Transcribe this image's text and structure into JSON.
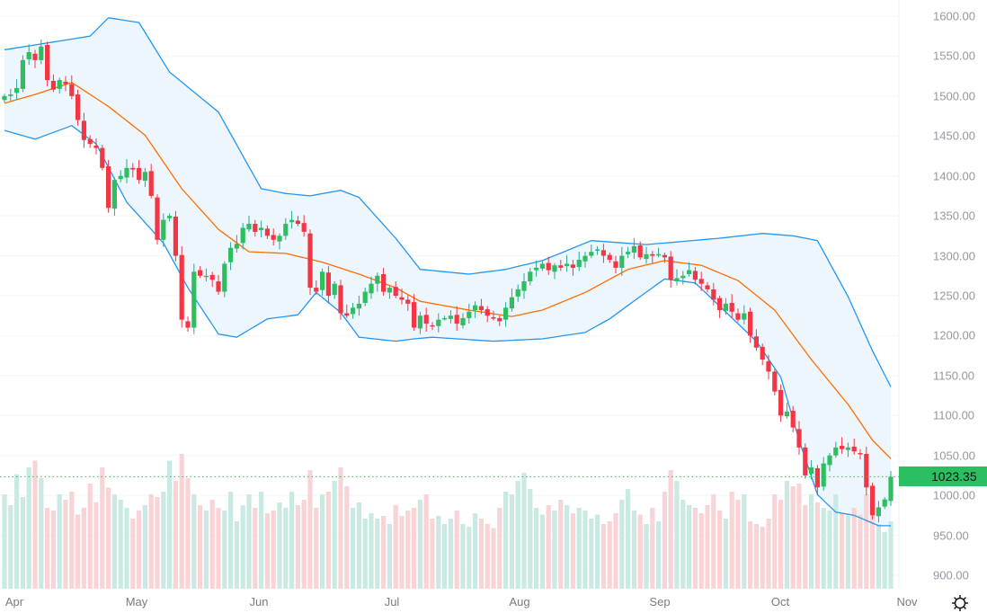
{
  "chart_data": {
    "type": "candlestick",
    "title": "",
    "y_axis": {
      "ticks": [
        "1600.00",
        "1550.00",
        "1500.00",
        "1450.00",
        "1400.00",
        "1350.00",
        "1300.00",
        "1250.00",
        "1200.00",
        "1150.00",
        "1100.00",
        "1050.00",
        "1000.00",
        "950.00",
        "900.00"
      ],
      "range": [
        900,
        1600
      ]
    },
    "x_axis": {
      "ticks": [
        "Apr",
        "May",
        "Jun",
        "Jul",
        "Aug",
        "Sep",
        "Oct",
        "Nov"
      ]
    },
    "last_price": "1023.35",
    "first_open": 1495,
    "closes": [
      1500,
      1502,
      1510,
      1545,
      1555,
      1545,
      1562,
      1520,
      1508,
      1520,
      1515,
      1500,
      1470,
      1445,
      1440,
      1435,
      1410,
      1360,
      1395,
      1400,
      1410,
      1408,
      1395,
      1405,
      1375,
      1320,
      1345,
      1350,
      1300,
      1220,
      1210,
      1280,
      1275,
      1275,
      1270,
      1255,
      1290,
      1310,
      1315,
      1335,
      1340,
      1330,
      1335,
      1325,
      1320,
      1325,
      1340,
      1345,
      1340,
      1330,
      1260,
      1255,
      1280,
      1250,
      1265,
      1228,
      1225,
      1235,
      1240,
      1255,
      1265,
      1275,
      1255,
      1260,
      1250,
      1245,
      1240,
      1210,
      1225,
      1215,
      1212,
      1220,
      1222,
      1225,
      1215,
      1222,
      1230,
      1238,
      1232,
      1225,
      1222,
      1218,
      1235,
      1248,
      1258,
      1268,
      1280,
      1285,
      1290,
      1282,
      1288,
      1285,
      1290,
      1285,
      1295,
      1300,
      1305,
      1308,
      1300,
      1295,
      1285,
      1300,
      1305,
      1312,
      1298,
      1302,
      1300,
      1302,
      1298,
      1270,
      1272,
      1275,
      1282,
      1270,
      1265,
      1258,
      1245,
      1232,
      1240,
      1230,
      1220,
      1228,
      1200,
      1185,
      1170,
      1155,
      1130,
      1100,
      1105,
      1085,
      1060,
      1025,
      1035,
      1010,
      1040,
      1050,
      1060,
      1058,
      1060,
      1055,
      1052,
      1010,
      975,
      985,
      995,
      1023.35
    ],
    "volumes": [
      70,
      62,
      85,
      68,
      90,
      95,
      82,
      60,
      58,
      70,
      66,
      72,
      55,
      60,
      78,
      64,
      90,
      75,
      70,
      66,
      60,
      52,
      58,
      62,
      70,
      68,
      72,
      95,
      80,
      100,
      82,
      70,
      62,
      58,
      66,
      60,
      58,
      72,
      50,
      62,
      70,
      60,
      72,
      56,
      58,
      64,
      60,
      72,
      62,
      66,
      88,
      60,
      70,
      72,
      80,
      90,
      76,
      60,
      64,
      52,
      56,
      52,
      54,
      48,
      62,
      54,
      58,
      60,
      66,
      70,
      52,
      54,
      48,
      52,
      58,
      48,
      46,
      56,
      52,
      48,
      45,
      60,
      72,
      70,
      80,
      86,
      74,
      60,
      55,
      62,
      58,
      66,
      62,
      56,
      60,
      58,
      52,
      55,
      48,
      50,
      56,
      66,
      74,
      58,
      55,
      48,
      60,
      50,
      72,
      88,
      80,
      66,
      62,
      60,
      56,
      62,
      70,
      58,
      52,
      72,
      66,
      70,
      50,
      48,
      46,
      52,
      70,
      66,
      80,
      76,
      78,
      62,
      70,
      64,
      60,
      58,
      70,
      56,
      54,
      60,
      55,
      70,
      54,
      48,
      42,
      50
    ],
    "bollinger": {
      "upper": [
        [
          0,
          1558
        ],
        [
          5,
          1564
        ],
        [
          14,
          1575
        ],
        [
          17,
          1598
        ],
        [
          22,
          1592
        ],
        [
          27,
          1530
        ],
        [
          35,
          1480
        ],
        [
          42,
          1384
        ],
        [
          46,
          1378
        ],
        [
          50,
          1375
        ],
        [
          55,
          1382
        ],
        [
          58,
          1373
        ],
        [
          64,
          1322
        ],
        [
          68,
          1283
        ],
        [
          76,
          1277
        ],
        [
          82,
          1283
        ],
        [
          88,
          1294
        ],
        [
          96,
          1319
        ],
        [
          105,
          1314
        ],
        [
          117,
          1322
        ],
        [
          124,
          1328
        ],
        [
          129,
          1325
        ],
        [
          133,
          1319
        ],
        [
          138,
          1249
        ],
        [
          142,
          1181
        ],
        [
          145,
          1136
        ]
      ],
      "middle": [
        [
          0,
          1491
        ],
        [
          5,
          1502
        ],
        [
          11,
          1517
        ],
        [
          17,
          1487
        ],
        [
          23,
          1451
        ],
        [
          29,
          1384
        ],
        [
          35,
          1333
        ],
        [
          40,
          1305
        ],
        [
          46,
          1303
        ],
        [
          52,
          1292
        ],
        [
          58,
          1277
        ],
        [
          64,
          1260
        ],
        [
          68,
          1243
        ],
        [
          76,
          1232
        ],
        [
          83,
          1224
        ],
        [
          88,
          1232
        ],
        [
          95,
          1254
        ],
        [
          102,
          1283
        ],
        [
          108,
          1294
        ],
        [
          114,
          1288
        ],
        [
          120,
          1269
        ],
        [
          126,
          1232
        ],
        [
          132,
          1170
        ],
        [
          138,
          1114
        ],
        [
          142,
          1069
        ],
        [
          145,
          1046
        ]
      ],
      "lower": [
        [
          0,
          1457
        ],
        [
          5,
          1446
        ],
        [
          11,
          1463
        ],
        [
          15,
          1440
        ],
        [
          20,
          1367
        ],
        [
          26,
          1316
        ],
        [
          30,
          1260
        ],
        [
          35,
          1202
        ],
        [
          38,
          1198
        ],
        [
          43,
          1221
        ],
        [
          48,
          1226
        ],
        [
          51,
          1254
        ],
        [
          55,
          1229
        ],
        [
          58,
          1198
        ],
        [
          64,
          1193
        ],
        [
          67,
          1196
        ],
        [
          70,
          1198
        ],
        [
          80,
          1193
        ],
        [
          88,
          1196
        ],
        [
          95,
          1204
        ],
        [
          99,
          1221
        ],
        [
          104,
          1249
        ],
        [
          108,
          1271
        ],
        [
          113,
          1266
        ],
        [
          117,
          1237
        ],
        [
          123,
          1193
        ],
        [
          127,
          1148
        ],
        [
          130,
          1069
        ],
        [
          133,
          1001
        ],
        [
          136,
          979
        ],
        [
          139,
          975
        ],
        [
          143,
          962
        ],
        [
          145,
          962
        ]
      ]
    },
    "colors": {
      "up": "#2ebd5f",
      "down": "#f23645",
      "vol_up": "#c9e9e2",
      "vol_down": "#f9d4d6",
      "band": "#2196f3",
      "basis": "#ff6d00",
      "fill": "#eef6fd",
      "price_label": "#2cbf62"
    }
  }
}
